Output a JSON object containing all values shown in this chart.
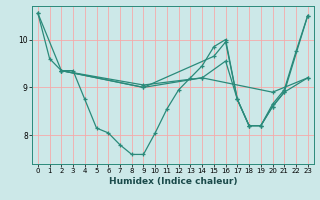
{
  "xlabel": "Humidex (Indice chaleur)",
  "background_color": "#cce8e8",
  "grid_color": "#f5aaaa",
  "line_color": "#2a8a7a",
  "xlim": [
    -0.5,
    23.5
  ],
  "ylim": [
    7.4,
    10.7
  ],
  "yticks": [
    8,
    9,
    10
  ],
  "xticks": [
    0,
    1,
    2,
    3,
    4,
    5,
    6,
    7,
    8,
    9,
    10,
    11,
    12,
    13,
    14,
    15,
    16,
    17,
    18,
    19,
    20,
    21,
    22,
    23
  ],
  "series1": [
    [
      0,
      10.55
    ],
    [
      1,
      9.6
    ],
    [
      2,
      9.35
    ],
    [
      3,
      9.35
    ],
    [
      4,
      8.75
    ],
    [
      5,
      8.15
    ],
    [
      6,
      8.05
    ],
    [
      7,
      7.8
    ],
    [
      8,
      7.6
    ],
    [
      9,
      7.6
    ],
    [
      10,
      8.05
    ],
    [
      11,
      8.55
    ],
    [
      12,
      8.95
    ],
    [
      13,
      9.2
    ],
    [
      14,
      9.45
    ],
    [
      15,
      9.85
    ],
    [
      16,
      10.0
    ],
    [
      17,
      8.75
    ],
    [
      18,
      8.2
    ],
    [
      19,
      8.2
    ],
    [
      20,
      8.65
    ],
    [
      21,
      8.95
    ],
    [
      22,
      9.75
    ],
    [
      23,
      10.5
    ]
  ],
  "series2": [
    [
      0,
      10.55
    ],
    [
      2,
      9.35
    ],
    [
      9,
      9.05
    ],
    [
      14,
      9.2
    ],
    [
      20,
      8.9
    ],
    [
      23,
      9.2
    ]
  ],
  "series3": [
    [
      2,
      9.35
    ],
    [
      9,
      9.0
    ],
    [
      15,
      9.65
    ],
    [
      16,
      9.95
    ],
    [
      17,
      8.75
    ],
    [
      18,
      8.2
    ],
    [
      19,
      8.2
    ],
    [
      20,
      8.6
    ],
    [
      21,
      8.9
    ],
    [
      23,
      10.5
    ]
  ],
  "series4": [
    [
      2,
      9.35
    ],
    [
      9,
      9.0
    ],
    [
      14,
      9.2
    ],
    [
      16,
      9.55
    ],
    [
      17,
      8.75
    ],
    [
      18,
      8.2
    ],
    [
      19,
      8.2
    ],
    [
      20,
      8.6
    ],
    [
      21,
      8.9
    ],
    [
      23,
      9.2
    ]
  ]
}
